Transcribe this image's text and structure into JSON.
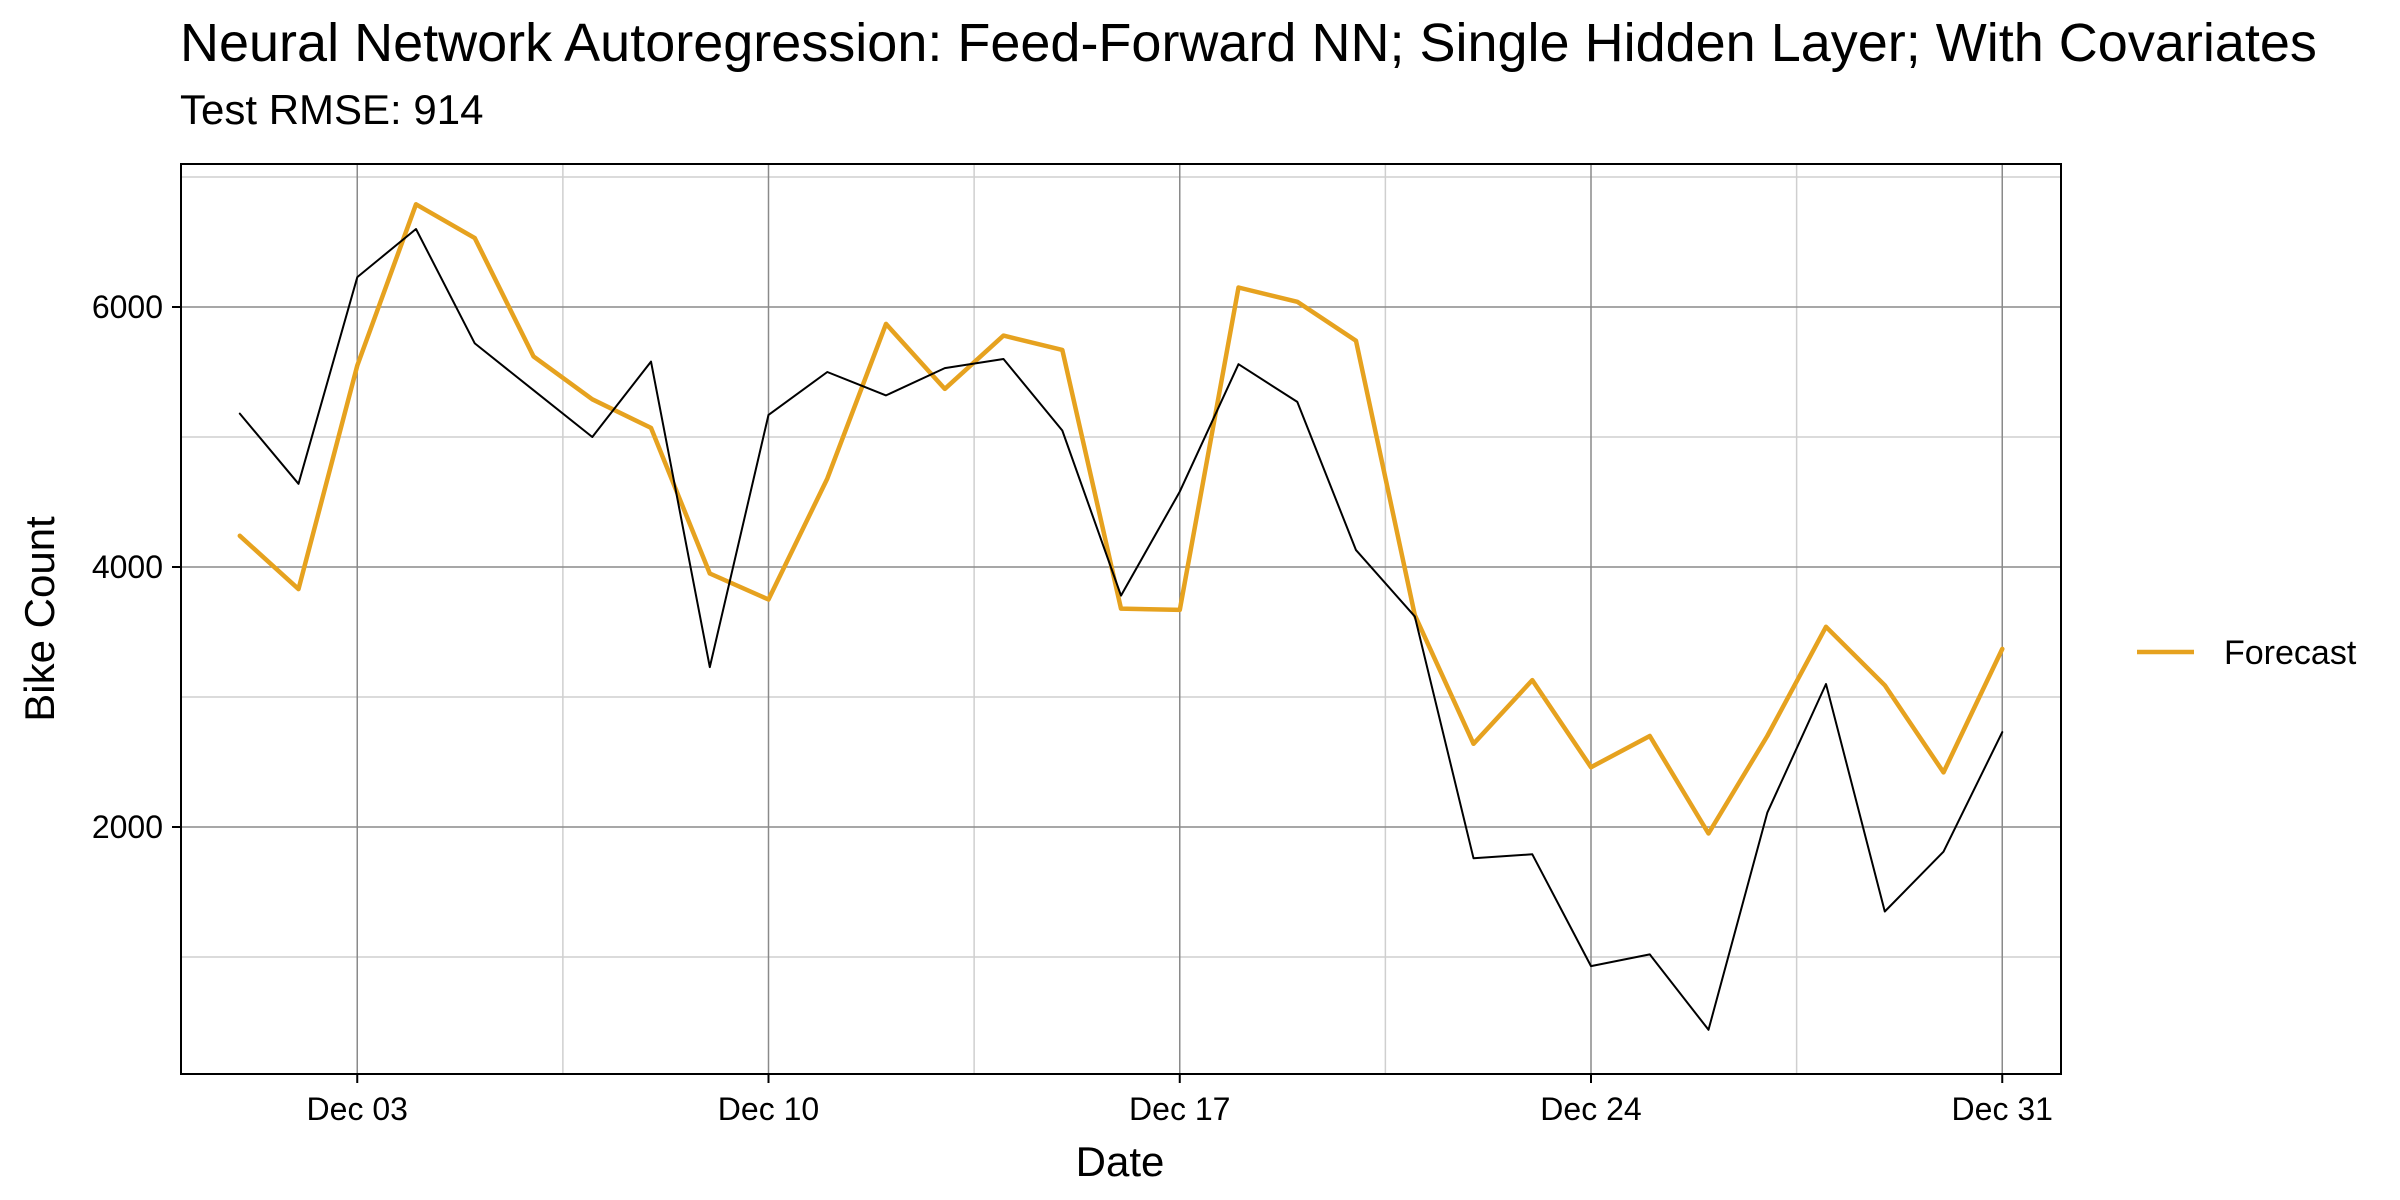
{
  "chart_data": {
    "type": "line",
    "title": "Neural Network Autoregression: Feed-Forward NN; Single Hidden Layer; With Covariates",
    "subtitle": "Test RMSE: 914",
    "xlabel": "Date",
    "ylabel": "Bike Count",
    "x": [
      "Dec 01",
      "Dec 02",
      "Dec 03",
      "Dec 04",
      "Dec 05",
      "Dec 06",
      "Dec 07",
      "Dec 08",
      "Dec 09",
      "Dec 10",
      "Dec 11",
      "Dec 12",
      "Dec 13",
      "Dec 14",
      "Dec 15",
      "Dec 16",
      "Dec 17",
      "Dec 18",
      "Dec 19",
      "Dec 20",
      "Dec 21",
      "Dec 22",
      "Dec 23",
      "Dec 24",
      "Dec 25",
      "Dec 26",
      "Dec 27",
      "Dec 28",
      "Dec 29",
      "Dec 30",
      "Dec 31"
    ],
    "x_range": [
      "2012-11-30",
      "2013-01-01"
    ],
    "x_ticks": [
      {
        "date": "2012-12-03",
        "label": "Dec 03"
      },
      {
        "date": "2012-12-10",
        "label": "Dec 10"
      },
      {
        "date": "2012-12-17",
        "label": "Dec 17"
      },
      {
        "date": "2012-12-24",
        "label": "Dec 24"
      },
      {
        "date": "2012-12-31",
        "label": "Dec 31"
      }
    ],
    "x_minor_ticks": [
      "2012-12-06T12:00",
      "2012-12-13T12:00",
      "2012-12-20T12:00",
      "2012-12-27T12:00"
    ],
    "ylim": [
      100,
      7100
    ],
    "y_ticks": [
      2000,
      4000,
      6000
    ],
    "y_minor_ticks": [
      1000,
      3000,
      5000,
      7000
    ],
    "grid": true,
    "legend_position": "right",
    "series": [
      {
        "key": "actual",
        "color": "#000000",
        "values": [
          5180,
          4640,
          6230,
          6600,
          5720,
          5360,
          5000,
          5580,
          3230,
          5170,
          5500,
          5320,
          5530,
          5600,
          5050,
          3780,
          4580,
          5560,
          5270,
          4130,
          3620,
          1760,
          1790,
          930,
          1020,
          440,
          2110,
          3100,
          1350,
          1810,
          2730
        ]
      },
      {
        "name": "Forecast",
        "key": "forecast",
        "color": "#E6A21F",
        "values": [
          4240,
          3830,
          5550,
          6790,
          6530,
          5620,
          5290,
          5070,
          3950,
          3750,
          4680,
          5870,
          5370,
          5780,
          5670,
          3680,
          3670,
          6150,
          6040,
          5740,
          3630,
          2640,
          3130,
          2460,
          2700,
          1950,
          2700,
          3540,
          3090,
          2420,
          3370
        ]
      }
    ]
  }
}
